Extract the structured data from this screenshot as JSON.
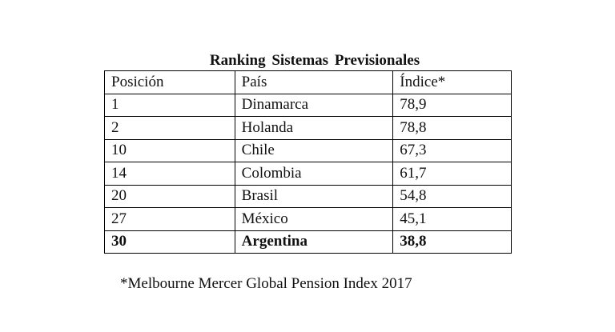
{
  "title": "Ranking  Sistemas Previsionales",
  "table": {
    "headers": [
      "Posición",
      "País",
      "Índice*"
    ],
    "rows": [
      {
        "position": "1",
        "country": "Dinamarca",
        "index": "78,9",
        "bold": false
      },
      {
        "position": "2",
        "country": "Holanda",
        "index": "78,8",
        "bold": false
      },
      {
        "position": "10",
        "country": "Chile",
        "index": "67,3",
        "bold": false
      },
      {
        "position": "14",
        "country": "Colombia",
        "index": "61,7",
        "bold": false
      },
      {
        "position": "20",
        "country": "Brasil",
        "index": "54,8",
        "bold": false
      },
      {
        "position": "27",
        "country": "México",
        "index": "45,1",
        "bold": false
      },
      {
        "position": "30",
        "country": "Argentina",
        "index": "38,8",
        "bold": true
      }
    ]
  },
  "footnote": "*Melbourne Mercer Global Pension Index 2017"
}
